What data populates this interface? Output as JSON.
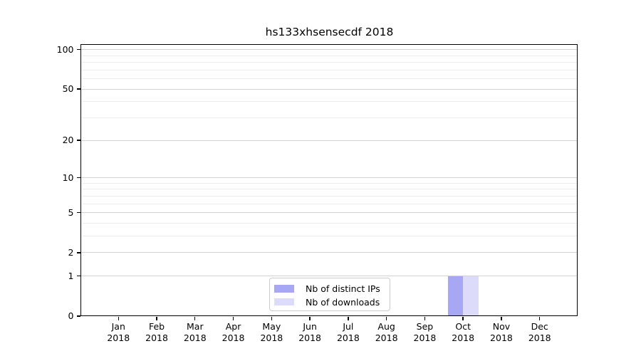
{
  "title": "hs133xhsensecdf 2018",
  "chart_data": {
    "type": "bar",
    "title": "hs133xhsensecdf 2018",
    "x_year": "2018",
    "x_tick_months": [
      "Jan",
      "Feb",
      "Mar",
      "Apr",
      "May",
      "Jun",
      "Jul",
      "Aug",
      "Sep",
      "Oct",
      "Nov",
      "Dec"
    ],
    "categories": [
      "Jan 2018",
      "Feb 2018",
      "Mar 2018",
      "Apr 2018",
      "May 2018",
      "Jun 2018",
      "Jul 2018",
      "Aug 2018",
      "Sep 2018",
      "Oct 2018",
      "Nov 2018",
      "Dec 2018"
    ],
    "series": [
      {
        "name": "Nb of distinct IPs",
        "color": "#a7a7f3",
        "values": [
          0,
          0,
          0,
          0,
          0,
          0,
          0,
          0,
          0,
          1,
          0,
          0
        ]
      },
      {
        "name": "Nb of downloads",
        "color": "#dcdcfa",
        "values": [
          0,
          0,
          0,
          0,
          0,
          0,
          0,
          0,
          0,
          1,
          0,
          0
        ]
      }
    ],
    "yscale": "log1p",
    "ylim": [
      0,
      110
    ],
    "yticks_major": [
      0,
      1,
      2,
      5,
      10,
      20,
      50,
      100
    ],
    "yticks_minor": [
      3,
      4,
      6,
      7,
      8,
      9,
      30,
      40,
      60,
      70,
      80,
      90
    ],
    "grid": "horizontal-only",
    "legend_position": "lower center",
    "bar_group_width_fraction": 0.8
  },
  "colors": {
    "major_grid": "#d2d2d2",
    "minor_grid": "#ececec",
    "spine": "#000000",
    "legend_border": "#cccccc",
    "background": "#ffffff"
  }
}
